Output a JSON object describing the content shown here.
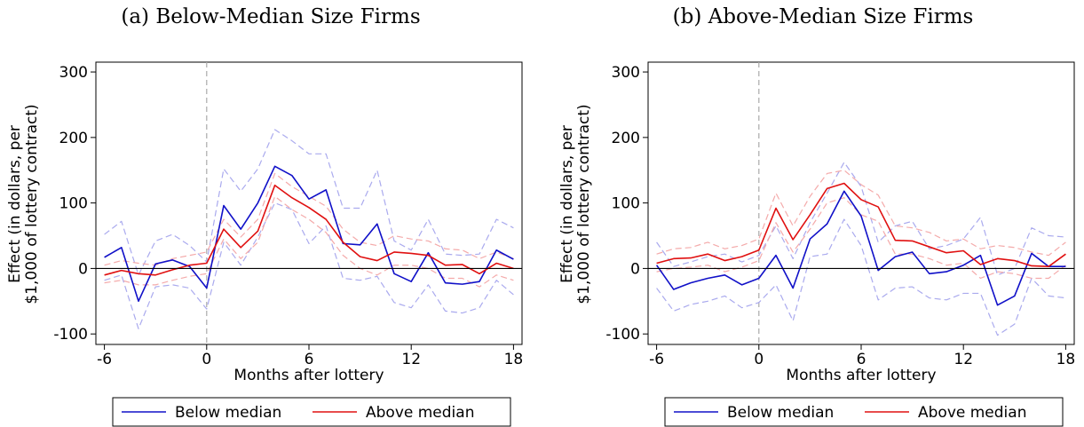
{
  "chart_data": [
    {
      "type": "line",
      "title": "(a) Below-Median Size Firms",
      "xlabel": "Months after lottery",
      "ylabel": [
        "Effect (in dollars, per",
        "$1,000 of lottery contract)"
      ],
      "x": [
        -6,
        -5,
        -4,
        -3,
        -2,
        -1,
        0,
        1,
        2,
        3,
        4,
        5,
        6,
        7,
        8,
        9,
        10,
        11,
        12,
        13,
        14,
        15,
        16,
        17,
        18
      ],
      "xlim": [
        -6.5,
        18.5
      ],
      "ylim": [
        -116,
        315
      ],
      "xticks": [
        -6,
        0,
        6,
        12,
        18
      ],
      "yticks": [
        300,
        200,
        100,
        0,
        -100
      ],
      "vline": 0,
      "hline": 0,
      "legend": "bottom",
      "series": [
        {
          "color": "#aaaaee",
          "dashed": true,
          "values": [
            52,
            72,
            -10,
            42,
            52,
            35,
            10,
            152,
            118,
            152,
            212,
            195,
            175,
            175,
            92,
            92,
            150,
            42,
            28,
            75,
            22,
            20,
            22,
            75,
            62
          ]
        },
        {
          "color": "#aaaaee",
          "dashed": true,
          "values": [
            -18,
            -10,
            -92,
            -28,
            -25,
            -30,
            -62,
            40,
            5,
            48,
            100,
            90,
            38,
            65,
            -15,
            -18,
            -12,
            -52,
            -60,
            -25,
            -65,
            -68,
            -60,
            -18,
            -40
          ]
        },
        {
          "color": "#f4aaaa",
          "dashed": true,
          "values": [
            5,
            12,
            8,
            5,
            15,
            20,
            25,
            75,
            48,
            75,
            145,
            125,
            110,
            95,
            60,
            40,
            35,
            50,
            45,
            42,
            30,
            28,
            15,
            25,
            15
          ]
        },
        {
          "color": "#f4aaaa",
          "dashed": true,
          "values": [
            -22,
            -18,
            -25,
            -25,
            -18,
            -12,
            -8,
            45,
            15,
            40,
            110,
            90,
            75,
            55,
            20,
            0,
            -10,
            5,
            5,
            0,
            -15,
            -15,
            -28,
            -10,
            -18
          ]
        },
        {
          "name": "Below median",
          "color": "#1010c8",
          "values": [
            17,
            32,
            -50,
            7,
            13,
            3,
            -30,
            96,
            60,
            100,
            156,
            142,
            106,
            120,
            38,
            36,
            68,
            -8,
            -20,
            24,
            -22,
            -24,
            -20,
            28,
            14
          ]
        },
        {
          "name": "Above median",
          "color": "#e01010",
          "values": [
            -10,
            -3,
            -8,
            -10,
            -2,
            5,
            8,
            60,
            32,
            57,
            127,
            108,
            93,
            75,
            40,
            18,
            12,
            25,
            23,
            20,
            5,
            6,
            -8,
            8,
            0
          ]
        }
      ]
    },
    {
      "type": "line",
      "title": "(b) Above-Median Size Firms",
      "xlabel": "Months after lottery",
      "ylabel": [
        "Effect (in dollars, per",
        "$1,000 of lottery contract)"
      ],
      "x": [
        -6,
        -5,
        -4,
        -3,
        -2,
        -1,
        0,
        1,
        2,
        3,
        4,
        5,
        6,
        7,
        8,
        9,
        10,
        11,
        12,
        13,
        14,
        15,
        16,
        17,
        18
      ],
      "xlim": [
        -6.5,
        18.5
      ],
      "ylim": [
        -116,
        315
      ],
      "xticks": [
        -6,
        0,
        6,
        12,
        18
      ],
      "yticks": [
        300,
        200,
        100,
        0,
        -100
      ],
      "vline": 0,
      "hline": 0,
      "legend": "bottom",
      "series": [
        {
          "color": "#aaaaee",
          "dashed": true,
          "values": [
            40,
            3,
            10,
            18,
            22,
            10,
            20,
            65,
            15,
            70,
            115,
            162,
            125,
            40,
            65,
            72,
            30,
            35,
            45,
            78,
            -10,
            0,
            62,
            50,
            48
          ]
        },
        {
          "color": "#aaaaee",
          "dashed": true,
          "values": [
            -30,
            -65,
            -55,
            -50,
            -42,
            -60,
            -52,
            -25,
            -80,
            18,
            22,
            75,
            35,
            -48,
            -30,
            -28,
            -45,
            -48,
            -38,
            -38,
            -102,
            -85,
            -15,
            -42,
            -45
          ]
        },
        {
          "color": "#f4aaaa",
          "dashed": true,
          "values": [
            22,
            30,
            32,
            40,
            30,
            35,
            45,
            115,
            65,
            110,
            145,
            150,
            128,
            112,
            65,
            62,
            55,
            42,
            45,
            30,
            35,
            32,
            25,
            20,
            40
          ]
        },
        {
          "color": "#f4aaaa",
          "dashed": true,
          "values": [
            -5,
            0,
            2,
            5,
            -5,
            2,
            12,
            70,
            25,
            60,
            100,
            108,
            82,
            72,
            22,
            22,
            15,
            5,
            8,
            -15,
            -5,
            -8,
            -15,
            -15,
            5
          ]
        },
        {
          "name": "Below median",
          "color": "#1010c8",
          "values": [
            5,
            -32,
            -22,
            -15,
            -10,
            -25,
            -15,
            20,
            -30,
            45,
            68,
            118,
            80,
            -3,
            18,
            25,
            -8,
            -5,
            5,
            20,
            -56,
            -42,
            23,
            3,
            3
          ]
        },
        {
          "name": "Above median",
          "color": "#e01010",
          "values": [
            8,
            15,
            16,
            22,
            12,
            18,
            28,
            92,
            44,
            82,
            122,
            130,
            105,
            94,
            43,
            42,
            33,
            24,
            27,
            6,
            15,
            12,
            4,
            3,
            22
          ]
        }
      ]
    }
  ]
}
